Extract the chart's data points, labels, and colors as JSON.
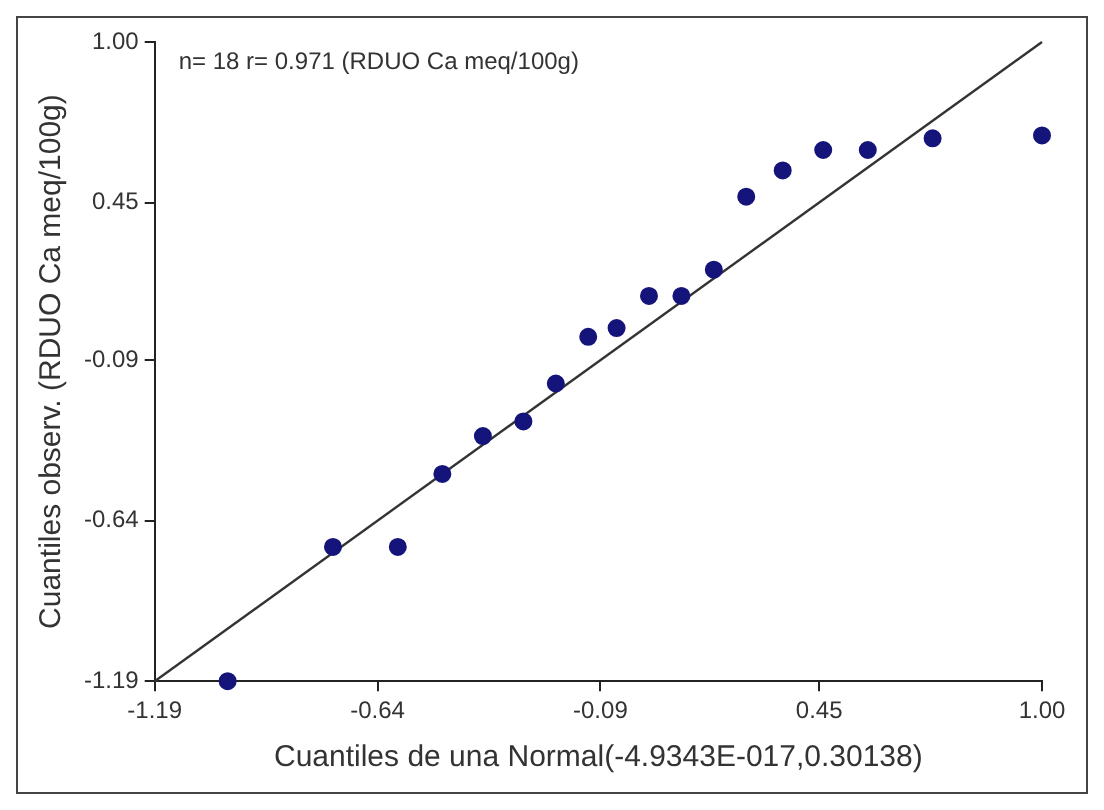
{
  "chart_data": {
    "type": "scatter",
    "xlabel": "Cuantiles de una Normal(-4.9343E-017,0.30138)",
    "ylabel": "Cuantiles observ. (RDUO Ca meq/100g)",
    "annotations": [
      "n= 18 r= 0.971 (RDUO Ca meq/100g)"
    ],
    "xlim": [
      -1.19,
      1.0
    ],
    "ylim": [
      -1.19,
      1.0
    ],
    "xticks": [
      -1.19,
      -0.64,
      -0.09,
      0.45,
      {
        "value": 1,
        "label": "1.00"
      }
    ],
    "yticks": [
      -1.19,
      -0.64,
      -0.09,
      0.45,
      {
        "value": 1,
        "label": "1.00"
      }
    ],
    "series": [
      {
        "color": "#14147a",
        "marker": "circle",
        "x": [
          -1.01,
          -0.75,
          -0.59,
          -0.48,
          -0.38,
          -0.28,
          -0.2,
          -0.12,
          -0.05,
          0.03,
          0.11,
          0.19,
          0.27,
          0.36,
          0.46,
          0.57,
          0.73,
          1.0
        ],
        "values": [
          -1.19,
          -0.73,
          -0.73,
          -0.48,
          -0.35,
          -0.3,
          -0.17,
          -0.01,
          0.02,
          0.13,
          0.13,
          0.22,
          0.47,
          0.56,
          0.63,
          0.63,
          0.67,
          0.68
        ]
      },
      {
        "type": "line",
        "marker": "none",
        "color": "#333333",
        "x": [
          -1.19,
          1.0
        ],
        "values": [
          -1.19,
          1.0
        ]
      }
    ]
  }
}
